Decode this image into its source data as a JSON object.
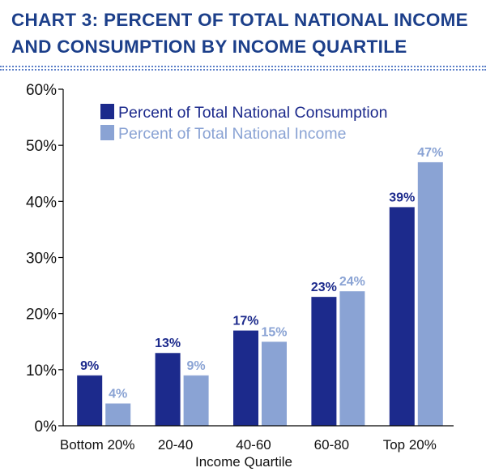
{
  "header": {
    "title_line1": "CHART 3: PERCENT OF TOTAL NATIONAL INCOME",
    "title_line2": "AND CONSUMPTION BY INCOME QUARTILE"
  },
  "colors": {
    "title": "#1c3f8a",
    "consumption": "#1c2a8c",
    "income": "#8aa3d4",
    "axis": "#000000"
  },
  "chart_data": {
    "type": "bar",
    "title": "CHART 3: PERCENT OF TOTAL NATIONAL INCOME AND CONSUMPTION BY INCOME QUARTILE",
    "xlabel": "Income Quartile",
    "ylabel": "",
    "ylim": [
      0,
      60
    ],
    "yticks": [
      0,
      10,
      20,
      30,
      40,
      50,
      60
    ],
    "ytick_labels": [
      "0%",
      "10%",
      "20%",
      "30%",
      "40%",
      "50%",
      "60%"
    ],
    "grid": false,
    "legend_position": "top-left",
    "categories": [
      "Bottom 20%",
      "20-40",
      "40-60",
      "60-80",
      "Top 20%"
    ],
    "series": [
      {
        "name": "Percent of Total National Consumption",
        "color": "#1c2a8c",
        "values": [
          9,
          13,
          17,
          23,
          39
        ],
        "labels": [
          "9%",
          "13%",
          "17%",
          "23%",
          "39%"
        ]
      },
      {
        "name": "Percent of Total National Income",
        "color": "#8aa3d4",
        "values": [
          4,
          9,
          15,
          24,
          47
        ],
        "labels": [
          "4%",
          "9%",
          "15%",
          "24%",
          "47%"
        ]
      }
    ]
  }
}
